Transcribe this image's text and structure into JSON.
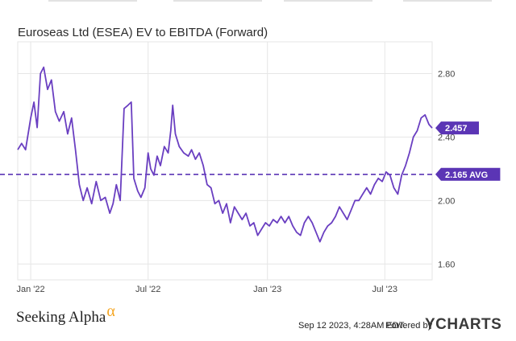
{
  "title": "Euroseas Ltd (ESEA) EV to EBITDA (Forward)",
  "footer": {
    "brand": "Seeking Alpha",
    "brand_symbol": "α",
    "timestamp": "Sep 12 2023, 4:28AM EDT.",
    "powered_by": "Powered by",
    "logo": "YCHARTS"
  },
  "colors": {
    "line": "#6a3fc1",
    "avg": "#5b35b5",
    "grid": "#e6e6e6",
    "label_bg": "#5b35b5"
  },
  "chart_data": {
    "type": "line",
    "title": "Euroseas Ltd (ESEA) EV to EBITDA (Forward)",
    "xlabel": "",
    "ylabel": "",
    "x_range": [
      "2021-12-12",
      "2023-09-12"
    ],
    "ylim": [
      1.5,
      3.0
    ],
    "y_ticks": [
      {
        "value": 1.6,
        "label": "1.60"
      },
      {
        "value": 2.0,
        "label": "2.00"
      },
      {
        "value": 2.4,
        "label": "2.40"
      },
      {
        "value": 2.8,
        "label": "2.80"
      }
    ],
    "x_ticks": [
      {
        "date": "2022-01-01",
        "label": "Jan '22"
      },
      {
        "date": "2022-07-01",
        "label": "Jul '22"
      },
      {
        "date": "2023-01-01",
        "label": "Jan '23"
      },
      {
        "date": "2023-07-01",
        "label": "Jul '23"
      }
    ],
    "series": [
      {
        "name": "EV to EBITDA (Forward)",
        "points": [
          [
            "2021-12-12",
            2.32
          ],
          [
            "2021-12-18",
            2.36
          ],
          [
            "2021-12-24",
            2.32
          ],
          [
            "2022-01-01",
            2.52
          ],
          [
            "2022-01-06",
            2.62
          ],
          [
            "2022-01-11",
            2.46
          ],
          [
            "2022-01-16",
            2.8
          ],
          [
            "2022-01-21",
            2.84
          ],
          [
            "2022-01-27",
            2.7
          ],
          [
            "2022-02-02",
            2.76
          ],
          [
            "2022-02-08",
            2.56
          ],
          [
            "2022-02-14",
            2.5
          ],
          [
            "2022-02-21",
            2.56
          ],
          [
            "2022-02-27",
            2.42
          ],
          [
            "2022-03-05",
            2.52
          ],
          [
            "2022-03-11",
            2.32
          ],
          [
            "2022-03-17",
            2.1
          ],
          [
            "2022-03-23",
            2.0
          ],
          [
            "2022-03-29",
            2.08
          ],
          [
            "2022-04-05",
            1.98
          ],
          [
            "2022-04-12",
            2.12
          ],
          [
            "2022-04-19",
            2.0
          ],
          [
            "2022-04-26",
            2.02
          ],
          [
            "2022-05-03",
            1.92
          ],
          [
            "2022-05-08",
            1.98
          ],
          [
            "2022-05-13",
            2.1
          ],
          [
            "2022-05-19",
            2.0
          ],
          [
            "2022-05-25",
            2.58
          ],
          [
            "2022-05-31",
            2.6
          ],
          [
            "2022-06-05",
            2.62
          ],
          [
            "2022-06-09",
            2.14
          ],
          [
            "2022-06-15",
            2.06
          ],
          [
            "2022-06-20",
            2.02
          ],
          [
            "2022-06-26",
            2.08
          ],
          [
            "2022-07-01",
            2.3
          ],
          [
            "2022-07-05",
            2.2
          ],
          [
            "2022-07-10",
            2.16
          ],
          [
            "2022-07-15",
            2.28
          ],
          [
            "2022-07-20",
            2.22
          ],
          [
            "2022-07-26",
            2.34
          ],
          [
            "2022-08-01",
            2.3
          ],
          [
            "2022-08-05",
            2.44
          ],
          [
            "2022-08-08",
            2.6
          ],
          [
            "2022-08-12",
            2.42
          ],
          [
            "2022-08-18",
            2.34
          ],
          [
            "2022-08-25",
            2.3
          ],
          [
            "2022-09-01",
            2.28
          ],
          [
            "2022-09-06",
            2.32
          ],
          [
            "2022-09-12",
            2.26
          ],
          [
            "2022-09-18",
            2.3
          ],
          [
            "2022-09-24",
            2.22
          ],
          [
            "2022-09-30",
            2.1
          ],
          [
            "2022-10-06",
            2.08
          ],
          [
            "2022-10-12",
            1.98
          ],
          [
            "2022-10-18",
            2.0
          ],
          [
            "2022-10-24",
            1.92
          ],
          [
            "2022-10-30",
            1.98
          ],
          [
            "2022-11-05",
            1.86
          ],
          [
            "2022-11-11",
            1.96
          ],
          [
            "2022-11-17",
            1.92
          ],
          [
            "2022-11-23",
            1.88
          ],
          [
            "2022-11-29",
            1.92
          ],
          [
            "2022-12-05",
            1.84
          ],
          [
            "2022-12-11",
            1.86
          ],
          [
            "2022-12-17",
            1.78
          ],
          [
            "2022-12-23",
            1.82
          ],
          [
            "2022-12-29",
            1.86
          ],
          [
            "2023-01-04",
            1.84
          ],
          [
            "2023-01-10",
            1.88
          ],
          [
            "2023-01-16",
            1.86
          ],
          [
            "2023-01-22",
            1.9
          ],
          [
            "2023-01-28",
            1.86
          ],
          [
            "2023-02-03",
            1.9
          ],
          [
            "2023-02-09",
            1.84
          ],
          [
            "2023-02-15",
            1.8
          ],
          [
            "2023-02-21",
            1.78
          ],
          [
            "2023-02-27",
            1.86
          ],
          [
            "2023-03-05",
            1.9
          ],
          [
            "2023-03-11",
            1.86
          ],
          [
            "2023-03-17",
            1.8
          ],
          [
            "2023-03-23",
            1.74
          ],
          [
            "2023-03-29",
            1.8
          ],
          [
            "2023-04-04",
            1.84
          ],
          [
            "2023-04-10",
            1.86
          ],
          [
            "2023-04-16",
            1.9
          ],
          [
            "2023-04-22",
            1.96
          ],
          [
            "2023-04-28",
            1.92
          ],
          [
            "2023-05-04",
            1.88
          ],
          [
            "2023-05-10",
            1.94
          ],
          [
            "2023-05-16",
            2.0
          ],
          [
            "2023-05-22",
            2.0
          ],
          [
            "2023-05-28",
            2.04
          ],
          [
            "2023-06-03",
            2.08
          ],
          [
            "2023-06-09",
            2.04
          ],
          [
            "2023-06-15",
            2.1
          ],
          [
            "2023-06-21",
            2.14
          ],
          [
            "2023-06-27",
            2.12
          ],
          [
            "2023-07-03",
            2.18
          ],
          [
            "2023-07-09",
            2.16
          ],
          [
            "2023-07-15",
            2.08
          ],
          [
            "2023-07-21",
            2.04
          ],
          [
            "2023-07-27",
            2.16
          ],
          [
            "2023-08-02",
            2.22
          ],
          [
            "2023-08-08",
            2.3
          ],
          [
            "2023-08-14",
            2.4
          ],
          [
            "2023-08-20",
            2.44
          ],
          [
            "2023-08-26",
            2.52
          ],
          [
            "2023-09-01",
            2.54
          ],
          [
            "2023-09-07",
            2.48
          ],
          [
            "2023-09-12",
            2.457
          ]
        ]
      }
    ],
    "average": {
      "value": 2.165,
      "label": "2.165 AVG"
    },
    "last_value": {
      "value": 2.457,
      "label": "2.457"
    },
    "grid": true
  }
}
